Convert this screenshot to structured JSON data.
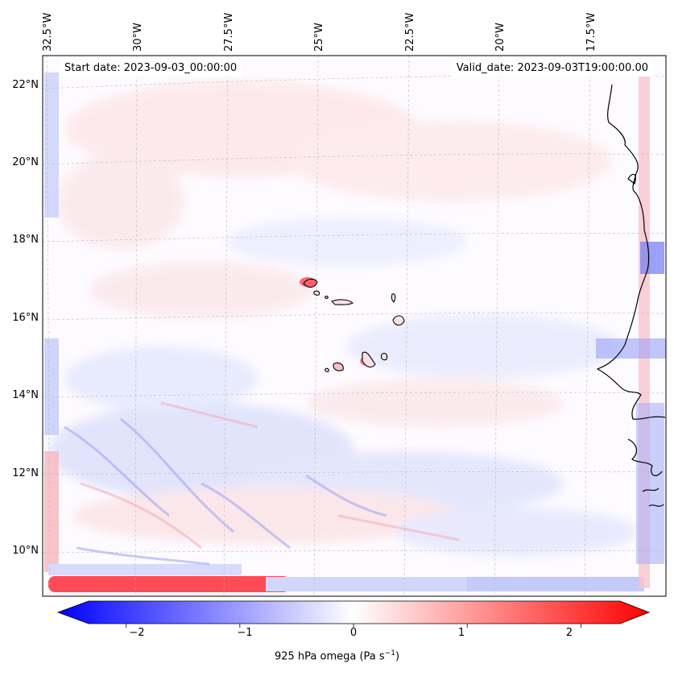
{
  "header": {
    "start_date": "Start date: 2023-09-03_00:00:00",
    "valid_date": "Valid_date: 2023-09-03T19:00:00.00"
  },
  "colorbar": {
    "label_prefix": "925 hPa omega (Pa s",
    "label_exponent": "−1",
    "label_suffix": ")",
    "ticks": [
      "−2",
      "−1",
      "0",
      "1",
      "2"
    ],
    "tick_values": [
      -2,
      -1,
      0,
      1,
      2
    ],
    "range": [
      -2.6,
      2.6
    ],
    "colors": {
      "negative": "#0000ff",
      "zero": "#ffffff",
      "positive": "#ff0000"
    }
  },
  "axes": {
    "lat_labels": [
      "22°N",
      "20°N",
      "18°N",
      "16°N",
      "14°N",
      "12°N",
      "10°N"
    ],
    "lat_values": [
      22,
      20,
      18,
      16,
      14,
      12,
      10
    ],
    "lon_labels": [
      "32.5°W",
      "30°W",
      "27.5°W",
      "25°W",
      "22.5°W",
      "20°W",
      "17.5°W"
    ],
    "lon_values": [
      -32.5,
      -30,
      -27.5,
      -25,
      -22.5,
      -20,
      -17.5
    ],
    "gridlines": true
  },
  "features": {
    "coastline_color": "#000000",
    "islands": [
      "Santo Antão",
      "São Vicente",
      "Santa Luzia",
      "São Nicolau",
      "Sal",
      "Boa Vista",
      "Maio",
      "Santiago",
      "Fogo",
      "Brava"
    ]
  }
}
